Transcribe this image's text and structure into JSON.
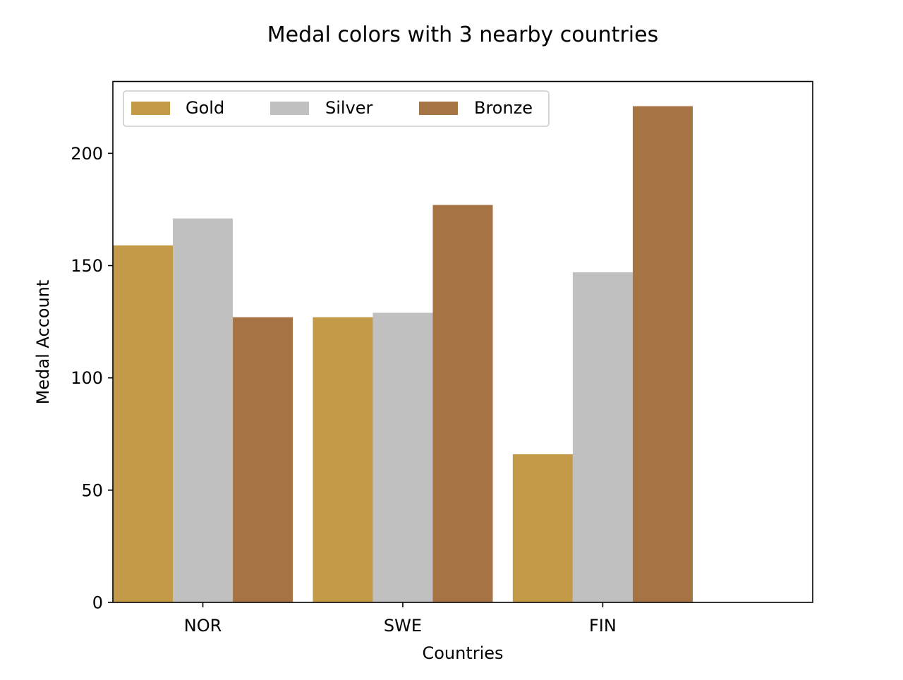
{
  "chart_data": {
    "type": "bar",
    "title": "Medal colors with 3 nearby countries",
    "xlabel": "Countries",
    "ylabel": "Medal Account",
    "categories": [
      "NOR",
      "SWE",
      "FIN"
    ],
    "series": [
      {
        "name": "Gold",
        "color": "#c29a48",
        "values": [
          159,
          127,
          66
        ]
      },
      {
        "name": "Silver",
        "color": "#c0c0c0",
        "values": [
          171,
          129,
          147
        ]
      },
      {
        "name": "Bronze",
        "color": "#a67344",
        "values": [
          127,
          177,
          221
        ]
      }
    ],
    "ylim": [
      0,
      232
    ],
    "yticks": [
      0,
      50,
      100,
      150,
      200
    ],
    "ytick_labels": [
      "0",
      "50",
      "100",
      "150",
      "200"
    ],
    "grid": false,
    "legend_position": "top-left",
    "legend_columns": 3
  }
}
